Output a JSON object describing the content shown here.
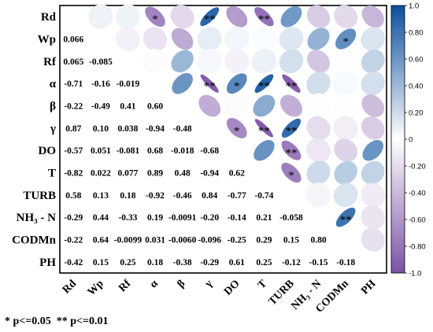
{
  "chart_data": {
    "type": "heatmap",
    "variables": [
      "Rd",
      "Wp",
      "Rf",
      "α",
      "β",
      "γ",
      "DO",
      "T",
      "TURB",
      "NH₃ - N",
      "CODMn",
      "PH"
    ],
    "lower_triangle_values": [
      [],
      [
        "0.066"
      ],
      [
        "0.065",
        "-0.085"
      ],
      [
        "-0.71",
        "-0.16",
        "-0.019"
      ],
      [
        "-0.22",
        "-0.49",
        "0.41",
        "0.60"
      ],
      [
        "0.87",
        "0.10",
        "0.038",
        "-0.94",
        "-0.48"
      ],
      [
        "-0.57",
        "0.051",
        "-0.081",
        "0.68",
        "-0.018",
        "-0.68"
      ],
      [
        "-0.82",
        "0.022",
        "0.077",
        "0.89",
        "0.48",
        "-0.94",
        "0.62"
      ],
      [
        "0.58",
        "0.13",
        "0.18",
        "-0.92",
        "-0.46",
        "0.84",
        "-0.77",
        "-0.74"
      ],
      [
        "-0.29",
        "0.44",
        "-0.33",
        "0.19",
        "-0.0091",
        "-0.20",
        "-0.14",
        "0.21",
        "-0.058"
      ],
      [
        "-0.22",
        "0.64",
        "-0.0099",
        "0.031",
        "-0.0060",
        "-0.096",
        "-0.25",
        "0.29",
        "0.15",
        "0.80"
      ],
      [
        "-0.42",
        "0.15",
        "0.25",
        "0.18",
        "-0.38",
        "-0.29",
        "0.61",
        "0.25",
        "-0.12",
        "-0.15",
        "-0.18"
      ]
    ],
    "significance": [
      {
        "row": 0,
        "col": 3,
        "mark": "*"
      },
      {
        "row": 0,
        "col": 5,
        "mark": "**"
      },
      {
        "row": 0,
        "col": 7,
        "mark": "**"
      },
      {
        "row": 1,
        "col": 10,
        "mark": "*"
      },
      {
        "row": 3,
        "col": 5,
        "mark": "**"
      },
      {
        "row": 3,
        "col": 6,
        "mark": "*"
      },
      {
        "row": 3,
        "col": 7,
        "mark": "**"
      },
      {
        "row": 3,
        "col": 8,
        "mark": "**"
      },
      {
        "row": 5,
        "col": 6,
        "mark": "*"
      },
      {
        "row": 5,
        "col": 7,
        "mark": "**"
      },
      {
        "row": 5,
        "col": 8,
        "mark": "**"
      },
      {
        "row": 6,
        "col": 8,
        "mark": "**"
      },
      {
        "row": 7,
        "col": 8,
        "mark": "*"
      },
      {
        "row": 9,
        "col": 10,
        "mark": "**"
      }
    ],
    "colorbar": {
      "range": [
        -1.0,
        1.0
      ],
      "ticks": [
        "1.0",
        "0.80",
        "0.60",
        "0.40",
        "0.20",
        "0",
        "-0.20",
        "-0.40",
        "-0.60",
        "-0.80",
        "-1.0"
      ],
      "positive_color": "#0b4f9c",
      "negative_color": "#7b52a6",
      "zero_color": "#ffffff"
    },
    "note": "* p<=0.05  ** p<=0.01"
  }
}
